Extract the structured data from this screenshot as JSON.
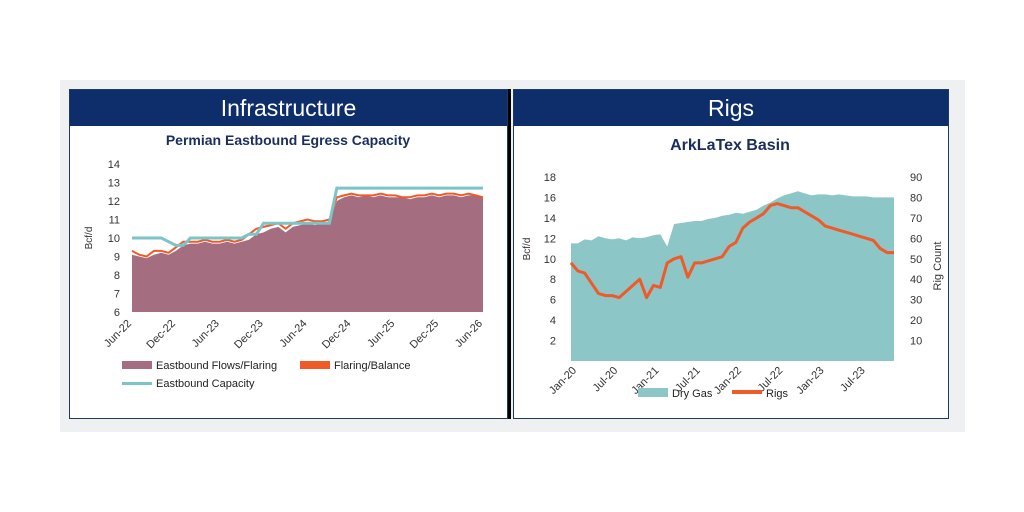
{
  "panels": [
    {
      "banner": "Infrastructure"
    },
    {
      "banner": "Rigs"
    }
  ],
  "colors": {
    "banner_bg": "#0d2d6b",
    "flows": "#a56d80",
    "flaring": "#f05a28",
    "capacity": "#7cc4c8",
    "dry_gas": "#8cc6c6",
    "rigs": "#f05a28"
  },
  "chart_data": [
    {
      "type": "area",
      "title": "Permian Eastbound Egress Capacity",
      "ylabel": "Bcf/d",
      "ylim": [
        6,
        14
      ],
      "yticks": [
        6,
        7,
        8,
        9,
        10,
        11,
        12,
        13,
        14
      ],
      "xticks": [
        "Jun-22",
        "Dec-22",
        "Jun-23",
        "Dec-23",
        "Jun-24",
        "Dec-24",
        "Jun-25",
        "Dec-25",
        "Jun-26"
      ],
      "x_start": "Jun-22",
      "x_end": "Jun-26",
      "legend_position": "bottom",
      "series": [
        {
          "name": "Eastbound Flows/Flaring",
          "kind": "area",
          "values": [
            9.1,
            9.0,
            8.9,
            9.1,
            9.2,
            9.1,
            9.3,
            9.6,
            9.7,
            9.7,
            9.8,
            9.7,
            9.7,
            9.8,
            9.7,
            9.8,
            9.9,
            10.2,
            10.3,
            10.5,
            10.6,
            10.3,
            10.6,
            10.7,
            10.8,
            10.7,
            10.8,
            10.9,
            12.0,
            12.2,
            12.3,
            12.2,
            12.3,
            12.2,
            12.3,
            12.2,
            12.2,
            12.2,
            12.1,
            12.2,
            12.2,
            12.3,
            12.2,
            12.3,
            12.3,
            12.2,
            12.3,
            12.3,
            12.2
          ]
        },
        {
          "name": "Flaring/Balance",
          "kind": "line",
          "values": [
            9.3,
            9.1,
            9.0,
            9.3,
            9.3,
            9.2,
            9.5,
            9.8,
            9.8,
            9.8,
            9.9,
            9.8,
            9.8,
            9.9,
            9.8,
            9.9,
            10.2,
            10.5,
            10.6,
            10.7,
            10.8,
            10.5,
            10.8,
            10.9,
            11.0,
            10.9,
            10.9,
            11.0,
            12.2,
            12.3,
            12.4,
            12.3,
            12.3,
            12.3,
            12.4,
            12.3,
            12.3,
            12.2,
            12.2,
            12.3,
            12.3,
            12.4,
            12.3,
            12.4,
            12.4,
            12.3,
            12.4,
            12.3,
            12.2
          ]
        },
        {
          "name": "Eastbound Capacity",
          "kind": "line",
          "values": [
            10.0,
            10.0,
            10.0,
            10.0,
            10.0,
            9.8,
            9.6,
            9.6,
            10.0,
            10.0,
            10.0,
            10.0,
            10.0,
            10.0,
            10.0,
            10.0,
            10.2,
            10.2,
            10.8,
            10.8,
            10.8,
            10.8,
            10.8,
            10.8,
            10.8,
            10.8,
            10.8,
            10.8,
            12.7,
            12.7,
            12.7,
            12.7,
            12.7,
            12.7,
            12.7,
            12.7,
            12.7,
            12.7,
            12.7,
            12.7,
            12.7,
            12.7,
            12.7,
            12.7,
            12.7,
            12.7,
            12.7,
            12.7,
            12.7
          ]
        }
      ]
    },
    {
      "type": "area",
      "title": "ArkLaTex Basin",
      "ylabel": "Bcf/d",
      "y2label": "Rig Count",
      "ylim": [
        0,
        18
      ],
      "y2lim": [
        0,
        90
      ],
      "yticks": [
        2,
        4,
        6,
        8,
        10,
        12,
        14,
        16,
        18
      ],
      "y2ticks": [
        10,
        20,
        30,
        40,
        50,
        60,
        70,
        80,
        90
      ],
      "xticks": [
        "Jan-20",
        "Jul-20",
        "Jan-21",
        "Jul-21",
        "Jan-22",
        "Jul-22",
        "Jan-23",
        "Jul-23"
      ],
      "x_start": "Jan-20",
      "x_end": "Dec-23",
      "legend_position": "bottom",
      "series": [
        {
          "name": "Dry Gas",
          "kind": "area",
          "axis": "left",
          "values": [
            11.5,
            11.5,
            11.9,
            11.8,
            12.2,
            12.0,
            11.9,
            12.0,
            11.8,
            12.1,
            12.0,
            12.1,
            12.3,
            12.4,
            11.2,
            13.4,
            13.5,
            13.6,
            13.7,
            13.7,
            13.9,
            14.0,
            14.2,
            14.3,
            14.5,
            14.4,
            14.6,
            14.8,
            15.2,
            15.5,
            15.9,
            16.2,
            16.4,
            16.6,
            16.4,
            16.2,
            16.3,
            16.3,
            16.2,
            16.3,
            16.2,
            16.1,
            16.1,
            16.1,
            16.0,
            16.0,
            16.0,
            16.0
          ]
        },
        {
          "name": "Rigs",
          "kind": "line",
          "axis": "right",
          "values": [
            48,
            44,
            43,
            38,
            33,
            32,
            32,
            31,
            34,
            37,
            40,
            31,
            37,
            36,
            48,
            50,
            51,
            41,
            48,
            48,
            49,
            50,
            51,
            56,
            58,
            65,
            68,
            70,
            72,
            76,
            77,
            76,
            75,
            75,
            73,
            71,
            69,
            66,
            65,
            64,
            63,
            62,
            61,
            60,
            59,
            55,
            53,
            53
          ]
        }
      ]
    }
  ]
}
